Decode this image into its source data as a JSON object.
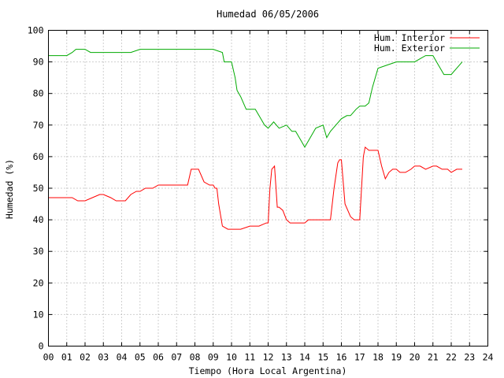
{
  "chart_data": {
    "type": "line",
    "title": "Humedad 06/05/2006",
    "xlabel": "Tiempo (Hora Local Argentina)",
    "ylabel": "Humedad (%)",
    "xlim": [
      0,
      24
    ],
    "ylim": [
      0,
      100
    ],
    "grid": true,
    "legend_position": "top-right",
    "x_ticks": [
      "00",
      "01",
      "02",
      "03",
      "04",
      "05",
      "06",
      "07",
      "08",
      "09",
      "10",
      "11",
      "12",
      "13",
      "14",
      "15",
      "16",
      "17",
      "18",
      "19",
      "20",
      "21",
      "22",
      "23",
      "24"
    ],
    "y_ticks": [
      "0",
      "10",
      "20",
      "30",
      "40",
      "50",
      "60",
      "70",
      "80",
      "90",
      "100"
    ],
    "series": [
      {
        "name": "Hum. Interior",
        "color": "#ff0000",
        "x": [
          0.0,
          0.3,
          0.6,
          0.9,
          1.0,
          1.3,
          1.6,
          2.0,
          2.4,
          2.8,
          3.0,
          3.4,
          3.7,
          4.0,
          4.2,
          4.5,
          4.8,
          5.0,
          5.3,
          5.7,
          6.0,
          6.4,
          6.8,
          7.0,
          7.3,
          7.6,
          7.8,
          8.0,
          8.2,
          8.5,
          8.8,
          9.0,
          9.1,
          9.2,
          9.3,
          9.5,
          9.8,
          10.0,
          10.5,
          11.0,
          11.5,
          11.9,
          12.0,
          12.1,
          12.2,
          12.35,
          12.5,
          12.6,
          12.8,
          13.0,
          13.2,
          13.5,
          13.8,
          14.0,
          14.2,
          14.5,
          15.0,
          15.4,
          15.6,
          15.8,
          15.9,
          16.0,
          16.2,
          16.5,
          16.7,
          16.9,
          17.0,
          17.1,
          17.2,
          17.3,
          17.5,
          18.0,
          18.2,
          18.4,
          18.6,
          18.8,
          19.0,
          19.2,
          19.5,
          19.8,
          20.0,
          20.3,
          20.6,
          21.0,
          21.2,
          21.5,
          21.8,
          22.0,
          22.3,
          22.6
        ],
        "y": [
          47,
          47,
          47,
          47,
          47,
          47,
          46,
          46,
          47,
          48,
          48,
          47,
          46,
          46,
          46,
          48,
          49,
          49,
          50,
          50,
          51,
          51,
          51,
          51,
          51,
          51,
          56,
          56,
          56,
          52,
          51,
          51,
          50,
          50,
          45,
          38,
          37,
          37,
          37,
          38,
          38,
          39,
          39,
          50,
          56,
          57,
          44,
          44,
          43,
          40,
          39,
          39,
          39,
          39,
          40,
          40,
          40,
          40,
          50,
          58,
          59,
          59,
          45,
          41,
          40,
          40,
          40,
          50,
          60,
          63,
          62,
          62,
          57,
          53,
          55,
          56,
          56,
          55,
          55,
          56,
          57,
          57,
          56,
          57,
          57,
          56,
          56,
          55,
          56,
          56
        ]
      },
      {
        "name": "Hum. Exterior",
        "color": "#00aa00",
        "x": [
          0.0,
          0.5,
          1.0,
          1.3,
          1.5,
          2.0,
          2.3,
          2.7,
          3.0,
          3.5,
          4.0,
          4.5,
          5.0,
          5.5,
          6.0,
          6.5,
          7.0,
          7.5,
          8.0,
          8.5,
          9.0,
          9.5,
          9.6,
          9.8,
          10.0,
          10.2,
          10.3,
          10.5,
          10.8,
          11.0,
          11.3,
          11.5,
          11.8,
          12.0,
          12.3,
          12.6,
          13.0,
          13.3,
          13.5,
          13.8,
          14.0,
          14.3,
          14.6,
          15.0,
          15.2,
          15.4,
          15.7,
          16.0,
          16.3,
          16.5,
          16.8,
          17.0,
          17.3,
          17.5,
          17.7,
          18.0,
          18.5,
          19.0,
          19.5,
          20.0,
          20.3,
          20.6,
          21.0,
          21.3,
          21.6,
          22.0,
          22.3,
          22.6
        ],
        "y": [
          92,
          92,
          92,
          93,
          94,
          94,
          93,
          93,
          93,
          93,
          93,
          93,
          94,
          94,
          94,
          94,
          94,
          94,
          94,
          94,
          94,
          93,
          90,
          90,
          90,
          85,
          81,
          79,
          75,
          75,
          75,
          73,
          70,
          69,
          71,
          69,
          70,
          68,
          68,
          65,
          63,
          66,
          69,
          70,
          66,
          68,
          70,
          72,
          73,
          73,
          75,
          76,
          76,
          77,
          82,
          88,
          89,
          90,
          90,
          90,
          91,
          92,
          92,
          89,
          86,
          86,
          88,
          90
        ]
      }
    ]
  }
}
